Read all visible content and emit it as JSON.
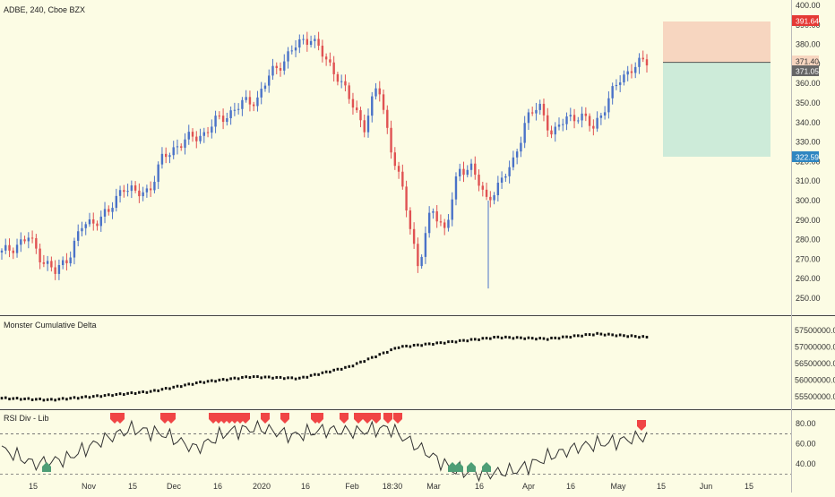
{
  "header": {
    "symbol_title": "ADBE, 240, Cboe BZX"
  },
  "panes": {
    "cumulative_delta_title": "Monster Cumulative Delta",
    "rsi_title": "RSI Div - Lib"
  },
  "price_axis": {
    "ticks": [
      "400.00",
      "390.00",
      "380.00",
      "370.00",
      "360.00",
      "350.00",
      "340.00",
      "330.00",
      "320.00",
      "310.00",
      "300.00",
      "290.00",
      "280.00",
      "270.00",
      "260.00",
      "250.00"
    ]
  },
  "delta_axis": {
    "ticks": [
      "57500000.00",
      "57000000.00",
      "56500000.00",
      "56000000.00",
      "55500000.00"
    ]
  },
  "rsi_axis": {
    "ticks": [
      "80.00",
      "60.00",
      "40.00"
    ]
  },
  "price_labels": {
    "stop": "391.64",
    "entry": "371.40",
    "last": "371.05",
    "target": "322.59"
  },
  "time_axis": {
    "ticks": [
      "15",
      "Nov",
      "15",
      "Dec",
      "16",
      "2020",
      "16",
      "Feb",
      "18:30",
      "Mar",
      "16",
      "Apr",
      "16",
      "May",
      "15",
      "Jun",
      "15"
    ]
  },
  "colors": {
    "up": "#4a72c8",
    "down": "#e05252",
    "stop_zone": "#f7d6c0",
    "target_zone": "#cdebd9",
    "stop_label": "#e53935",
    "target_label": "#2e86c1",
    "entry_label": "#f7d6c0",
    "last_label": "#666666",
    "bear_marker": "#f04545",
    "bull_marker": "#4e9e76"
  },
  "chart_data": [
    {
      "type": "candlestick",
      "title": "ADBE, 240, Cboe BZX",
      "ylim": [
        247,
        403
      ],
      "x_labels": [
        "15",
        "Nov",
        "15",
        "Dec",
        "16",
        "2020",
        "16",
        "Feb",
        "18:30",
        "Mar",
        "16",
        "Apr",
        "16",
        "May",
        "15",
        "Jun",
        "15"
      ],
      "close_path": [
        [
          "Oct 8",
          273
        ],
        [
          "Oct 14",
          277
        ],
        [
          "Oct 21",
          281
        ],
        [
          "Oct 24",
          270
        ],
        [
          "Oct 29",
          263
        ],
        [
          "Nov 4",
          272
        ],
        [
          "Nov 12",
          287
        ],
        [
          "Nov 19",
          290
        ],
        [
          "Nov 26",
          294
        ],
        [
          "Dec 2",
          308
        ],
        [
          "Dec 6",
          303
        ],
        [
          "Dec 10",
          306
        ],
        [
          "Dec 13",
          322
        ],
        [
          "Dec 20",
          328
        ],
        [
          "Dec 27",
          332
        ],
        [
          "Jan 3",
          334
        ],
        [
          "Jan 9",
          341
        ],
        [
          "Jan 15",
          345
        ],
        [
          "Jan 22",
          350
        ],
        [
          "Jan 27",
          352
        ],
        [
          "Jan 31",
          365
        ],
        [
          "Feb 5",
          372
        ],
        [
          "Feb 11",
          380
        ],
        [
          "Feb 14",
          384
        ],
        [
          "Feb 18",
          373
        ],
        [
          "Feb 21",
          364
        ],
        [
          "Feb 25",
          350
        ],
        [
          "Feb 28",
          338
        ],
        [
          "Mar 4",
          360
        ],
        [
          "Mar 9",
          326
        ],
        [
          "Mar 12",
          300
        ],
        [
          "Mar 16",
          266
        ],
        [
          "Mar 19",
          296
        ],
        [
          "Mar 23",
          285
        ],
        [
          "Mar 26",
          315
        ],
        [
          "Mar 30",
          318
        ],
        [
          "Apr 2",
          299
        ],
        [
          "Apr 6",
          309
        ],
        [
          "Apr 9",
          318
        ],
        [
          "Apr 14",
          342
        ],
        [
          "Apr 17",
          348
        ],
        [
          "Apr 21",
          334
        ],
        [
          "Apr 24",
          342
        ],
        [
          "Apr 28",
          344
        ],
        [
          "May 1",
          337
        ],
        [
          "May 4",
          350
        ],
        [
          "May 6",
          362
        ],
        [
          "May 8",
          369
        ],
        [
          "May 11",
          371.05
        ]
      ],
      "position_tool": {
        "entry": 371.4,
        "stop": 391.64,
        "target": 322.59
      }
    },
    {
      "type": "line",
      "title": "Monster Cumulative Delta",
      "ylim": [
        55250000,
        57750000
      ],
      "points": [
        [
          "Oct 8",
          55450000
        ],
        [
          "Nov 1",
          55400000
        ],
        [
          "Dec 1",
          55520000
        ],
        [
          "Jan 2",
          55650000
        ],
        [
          "Feb 1",
          55930000
        ],
        [
          "Feb 20",
          56100000
        ],
        [
          "Mar 2",
          56050000
        ],
        [
          "Mar 12",
          56400000
        ],
        [
          "Apr 1",
          57000000
        ],
        [
          "Apr 14",
          57150000
        ],
        [
          "Apr 20",
          57300000
        ],
        [
          "May 1",
          57250000
        ],
        [
          "May 8",
          57400000
        ],
        [
          "May 11",
          57300000
        ]
      ]
    },
    {
      "type": "line",
      "title": "RSI Div - Lib",
      "ylim": [
        25,
        90
      ],
      "reference_lines": [
        70,
        30
      ],
      "points": [
        [
          "Oct 8",
          55
        ],
        [
          "Oct 15",
          40
        ],
        [
          "Oct 22",
          45
        ],
        [
          "Nov 1",
          62
        ],
        [
          "Nov 10",
          75
        ],
        [
          "Nov 20",
          70
        ],
        [
          "Dec 1",
          55
        ],
        [
          "Dec 8",
          72
        ],
        [
          "Dec 14",
          76
        ],
        [
          "Jan 1",
          68
        ],
        [
          "Jan 14",
          74
        ],
        [
          "Feb 1",
          72
        ],
        [
          "Feb 14",
          76
        ],
        [
          "Feb 20",
          55
        ],
        [
          "Feb 28",
          34
        ],
        [
          "Mar 9",
          30
        ],
        [
          "Mar 16",
          34
        ],
        [
          "Apr 1",
          48
        ],
        [
          "Apr 14",
          58
        ],
        [
          "May 1",
          62
        ],
        [
          "May 11",
          68
        ]
      ],
      "bearish_divergence_markers": 20,
      "bullish_divergence_markers": 5
    }
  ]
}
